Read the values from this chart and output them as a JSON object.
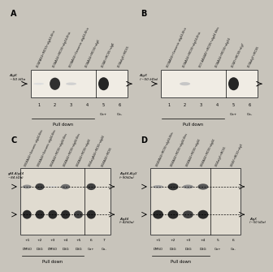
{
  "fig_bg": "#d8d4cc",
  "blot_bg": "#f8f6f2",
  "panel_bg": "#c8c4bc",
  "band_color": "#111111",
  "panels": {
    "A": {
      "label": "A",
      "col_labels": [
        "300ΔYA44+MCS5•alg44-6his",
        "300ΔA44+MCS5•alg44-6his",
        "300ΔA44+Genomic alg44-6his",
        "300ΔA44+MCS5•algK",
        "300ΔK+MCS5•algK",
        "300ΔalgK+MCS5"
      ],
      "n_pull_lanes": 4,
      "n_ctrl_lanes": 2,
      "left_label": "AlgK\n~50 kDa",
      "blot_bands": [
        0.15,
        0.9,
        0.2,
        0.0,
        0.95,
        0.0
      ],
      "ctrl_labels": [
        "Co+",
        "Co-"
      ]
    },
    "B": {
      "label": "B",
      "col_labels": [
        "300ΔA44+Genomic alg44-6his",
        "300ΔA44+MCS5•alg44-6his",
        "300 ΔA44ΔY+MCS5•alg44-6his",
        "300ΔA44+MCS5•alg44",
        "300ΔY+MCS5•algY",
        "300ΔalgY+MCS5"
      ],
      "n_pull_lanes": 4,
      "n_ctrl_lanes": 2,
      "left_label": "AlgX\n(~50 kDa)",
      "blot_bands": [
        0.0,
        0.25,
        0.05,
        0.0,
        0.95,
        0.0
      ],
      "ctrl_labels": [
        "Co+",
        "Co-"
      ]
    },
    "C": {
      "label": "C",
      "col_labels": [
        "300ΔA44+Genomic alg44-6his",
        "300ΔA44+Genomic alg44-6his",
        "300ΔA44+MCS5•alg44-6his",
        "300ΔA44+MCS5•alg44-6his",
        "300ΔA44+MCS5•alg44",
        "300ΔalgA44+MCS5•alg44",
        "300ΔA44+MCS5"
      ],
      "lane_nums": [
        "+1",
        "+2",
        "+3",
        "+4",
        "+5",
        "6",
        "7"
      ],
      "treatments": [
        "DMSO",
        "DSG",
        "DMSO",
        "DSG",
        "DSG",
        "Co+",
        "Co-"
      ],
      "n_pull_lanes": 5,
      "left_label_top": "g44-Alg44\n~84 kDa)",
      "right_label_top": "Alg44-AlgX\n(~90kDa)",
      "right_label_bot": "Alg44\n(~42kDa)",
      "upper_bands": [
        0.5,
        0.85,
        0.15,
        0.65,
        0.0,
        0.85,
        0.0
      ],
      "lower_bands": [
        0.95,
        0.95,
        0.95,
        0.95,
        0.85,
        0.95,
        0.0
      ]
    },
    "D": {
      "label": "D",
      "col_labels": [
        "300ΔYA44+MCS5•alg44-6his",
        "300ΔA44+MCS5•alg44-6his",
        "300ΔA44+MCS5•alg44",
        "300ΔA44+MCS5•alg44",
        "300ΔalgX+MCS5",
        "300ΔY+MCS5•algX"
      ],
      "lane_nums": [
        "+1",
        "+2",
        "+3",
        "+4",
        "5",
        "6"
      ],
      "treatments": [
        "DMSO",
        "DSG",
        "DSG",
        "DSG",
        "Co+",
        "Co-"
      ],
      "n_pull_lanes": 4,
      "right_label_bot": "AlgX\n(~50 kDa)",
      "upper_bands": [
        0.4,
        0.9,
        0.5,
        0.75,
        0.0,
        0.0
      ],
      "lower_bands": [
        0.95,
        0.95,
        0.85,
        0.95,
        0.0,
        0.0
      ],
      "has_dark_last": true
    }
  }
}
